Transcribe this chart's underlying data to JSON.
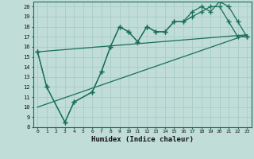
{
  "xlabel": "Humidex (Indice chaleur)",
  "bg_color": "#c0ddd8",
  "line_color": "#1a6e5a",
  "grid_color": "#a8ccc8",
  "xlim": [
    -0.5,
    23.5
  ],
  "ylim": [
    8,
    20.5
  ],
  "yticks": [
    8,
    9,
    10,
    11,
    12,
    13,
    14,
    15,
    16,
    17,
    18,
    19,
    20
  ],
  "xticks": [
    0,
    1,
    2,
    3,
    4,
    5,
    6,
    7,
    8,
    9,
    10,
    11,
    12,
    13,
    14,
    15,
    16,
    17,
    18,
    19,
    20,
    21,
    22,
    23
  ],
  "line1_x": [
    0,
    1,
    3,
    4,
    6,
    7,
    8,
    9,
    10,
    11,
    12,
    13,
    14,
    15,
    16,
    17,
    18,
    19,
    20,
    21,
    22,
    23
  ],
  "line1_y": [
    15.5,
    12,
    8.5,
    10.5,
    11.5,
    13.5,
    16,
    18,
    17.5,
    16.5,
    18,
    17.5,
    17.5,
    18.5,
    18.5,
    19.0,
    19.5,
    20.0,
    20.0,
    18.5,
    17.0,
    17.0
  ],
  "line2_x": [
    0,
    1,
    3,
    4,
    6,
    7,
    8,
    9,
    10,
    11,
    12,
    13,
    14,
    15,
    16,
    17,
    18,
    19,
    20,
    21,
    22,
    23
  ],
  "line2_y": [
    15.5,
    12,
    8.5,
    10.5,
    11.5,
    13.5,
    16,
    18,
    17.5,
    16.5,
    18,
    17.5,
    17.5,
    18.5,
    18.5,
    19.5,
    20.0,
    19.5,
    20.5,
    20.0,
    18.5,
    17.0
  ],
  "trend1_x": [
    0,
    23
  ],
  "trend1_y": [
    10.0,
    17.2
  ],
  "trend2_x": [
    0,
    23
  ],
  "trend2_y": [
    15.5,
    17.2
  ]
}
